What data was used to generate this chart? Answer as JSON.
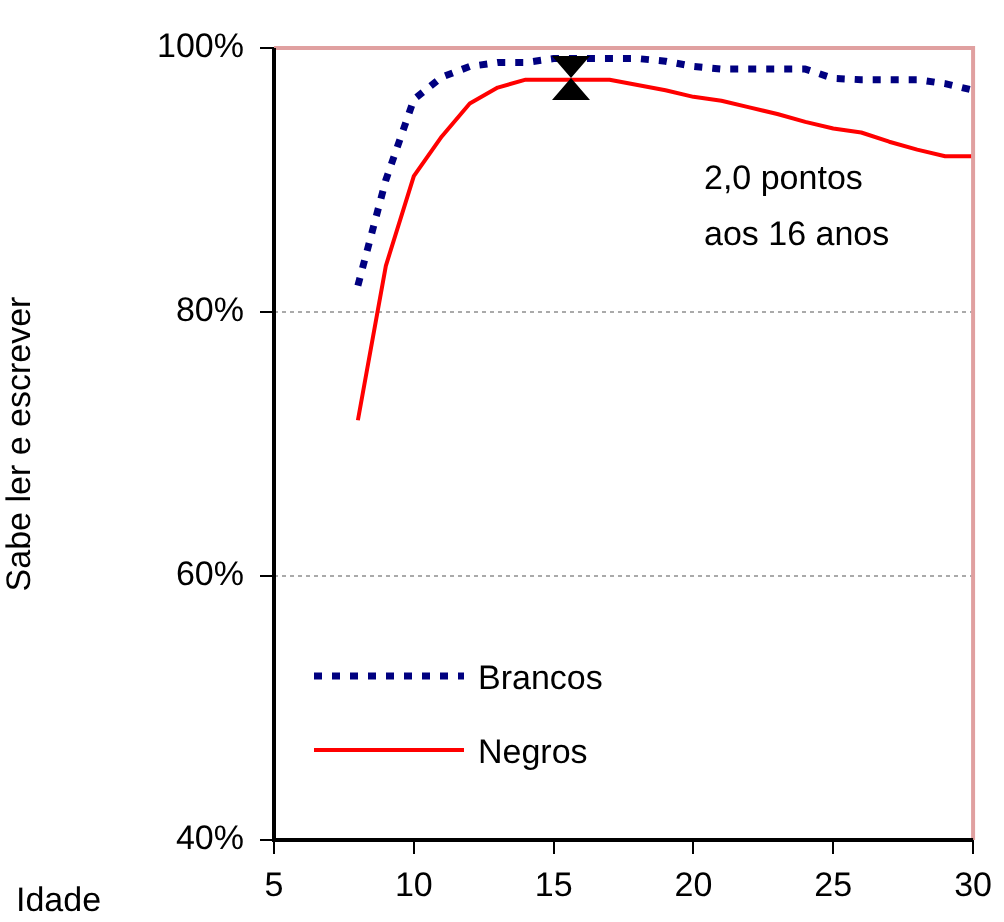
{
  "chart_data": {
    "type": "line",
    "xlabel": "Idade",
    "ylabel": "Sabe ler e escrever",
    "x": [
      8,
      9,
      10,
      11,
      12,
      13,
      14,
      15,
      16,
      17,
      18,
      19,
      20,
      21,
      22,
      23,
      24,
      25,
      26,
      27,
      28,
      29,
      30
    ],
    "series": [
      {
        "name": "Brancos",
        "color": "#000080",
        "line_style": "dotted",
        "values": [
          82.0,
          90.0,
          96.1,
          97.8,
          98.6,
          98.9,
          98.9,
          99.2,
          99.2,
          99.2,
          99.2,
          99.0,
          98.6,
          98.4,
          98.4,
          98.4,
          98.4,
          97.7,
          97.6,
          97.6,
          97.6,
          97.3,
          96.8
        ]
      },
      {
        "name": "Negros",
        "color": "#ff0000",
        "line_style": "solid",
        "values": [
          71.8,
          83.5,
          90.3,
          93.3,
          95.8,
          97.0,
          97.6,
          97.6,
          97.6,
          97.6,
          97.2,
          96.8,
          96.3,
          96.0,
          95.5,
          95.0,
          94.4,
          93.9,
          93.6,
          92.9,
          92.3,
          91.8,
          91.8
        ]
      }
    ],
    "xlim": [
      5,
      30
    ],
    "xticks": [
      5,
      10,
      15,
      20,
      25,
      30
    ],
    "ylim": [
      40,
      100
    ],
    "yticks": [
      {
        "value": 40,
        "label": "40%"
      },
      {
        "value": 60,
        "label": "60%"
      },
      {
        "value": 80,
        "label": "80%"
      },
      {
        "value": 100,
        "label": "100%"
      }
    ],
    "grid": "y",
    "legend": "bottom left",
    "marker": "none",
    "annotations": [
      "2,0 pontos\naos 16 anos"
    ]
  }
}
